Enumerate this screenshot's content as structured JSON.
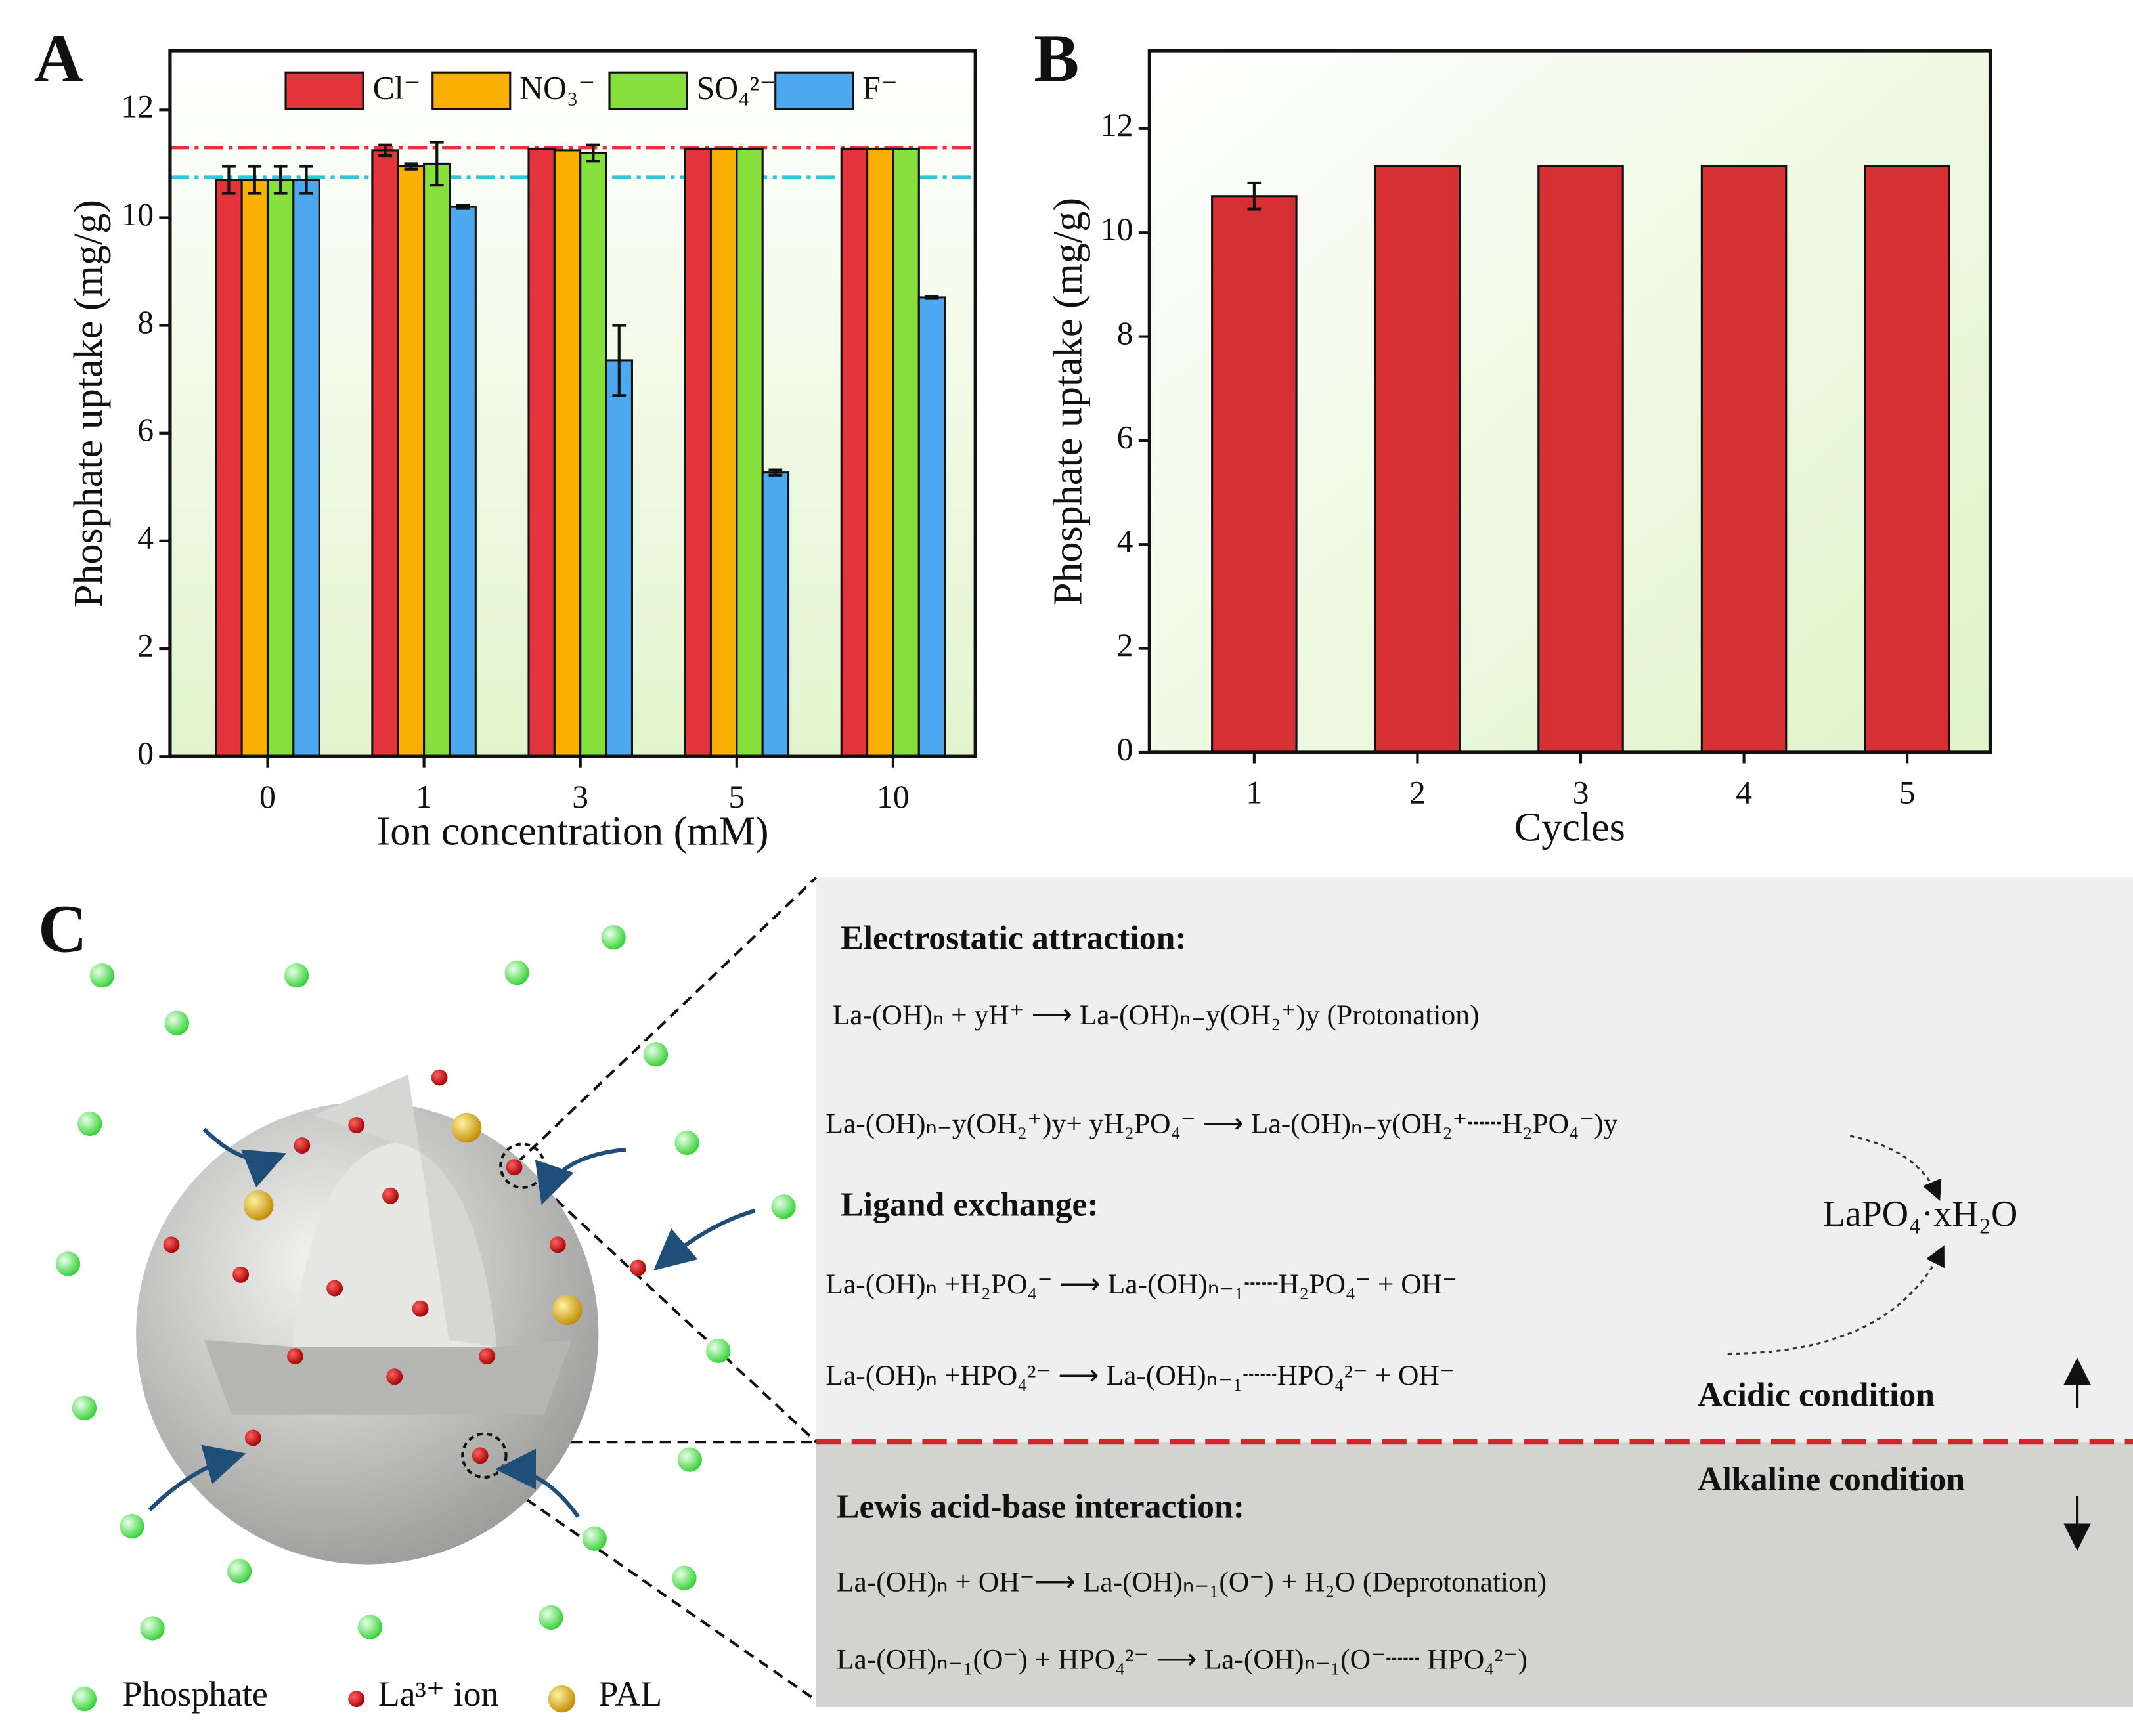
{
  "chart_data": [
    {
      "type": "bar",
      "panel_label": "A",
      "x_label": "Ion concentration (mM)",
      "y_label": "Phosphate uptake (mg/g)",
      "categories": [
        "0",
        "1",
        "3",
        "5",
        "10"
      ],
      "series": [
        {
          "name": "Cl⁻",
          "color": "#e3333b",
          "values": [
            10.7,
            11.25,
            11.28,
            11.28,
            11.28
          ],
          "errors": [
            0.25,
            0.1,
            null,
            null,
            null
          ]
        },
        {
          "name": "NO₃⁻",
          "color": "#f9b000",
          "values": [
            10.7,
            10.95,
            11.25,
            11.28,
            11.28
          ],
          "errors": [
            0.25,
            0.05,
            null,
            null,
            null
          ]
        },
        {
          "name": "SO₄²⁻",
          "color": "#86df3a",
          "values": [
            10.7,
            11.0,
            11.2,
            11.28,
            11.28
          ],
          "errors": [
            0.25,
            0.4,
            0.15,
            null,
            null
          ]
        },
        {
          "name": "F⁻",
          "color": "#4da8f0",
          "values": [
            10.7,
            10.2,
            7.35,
            5.27,
            8.52
          ],
          "errors": [
            0.25,
            0.03,
            0.65,
            0.05,
            0.02
          ]
        }
      ],
      "reference_lines": [
        {
          "value": 11.3,
          "color": "#e8323a"
        },
        {
          "value": 10.75,
          "color": "#2ec8d8"
        }
      ],
      "ylim": [
        0,
        13.1
      ],
      "yticks": [
        0,
        2,
        4,
        6,
        8,
        10,
        12
      ]
    },
    {
      "type": "bar",
      "panel_label": "B",
      "x_label": "Cycles",
      "y_label": "Phosphate uptake (mg/g)",
      "categories": [
        "1",
        "2",
        "3",
        "4",
        "5"
      ],
      "values": [
        10.7,
        11.28,
        11.28,
        11.28,
        11.28
      ],
      "errors": [
        0.25,
        null,
        null,
        null,
        null
      ],
      "color": "#d63034",
      "ylim": [
        0,
        13.5
      ],
      "yticks": [
        0,
        2,
        4,
        6,
        8,
        10,
        12
      ]
    }
  ],
  "diagram": {
    "panel_label": "C",
    "sections": [
      {
        "heading": "Electrostatic attraction:",
        "equations": [
          "La-(OH)ₙ + yH⁺ ⟶ La-(OH)ₙ₋y(OH₂⁺)y  (Protonation)",
          "La-(OH)ₙ₋y(OH₂⁺)y+ yH₂PO₄⁻ ⟶ La-(OH)ₙ₋y(OH₂⁺┄┄H₂PO₄⁻)y"
        ]
      },
      {
        "heading": "Ligand exchange:",
        "equations": [
          "La-(OH)ₙ +H₂PO₄⁻ ⟶ La-(OH)ₙ₋₁┄┄H₂PO₄⁻ + OH⁻",
          "La-(OH)ₙ +HPO₄²⁻ ⟶ La-(OH)ₙ₋₁┄┄HPO₄²⁻ + OH⁻"
        ]
      },
      {
        "heading": "Lewis acid-base interaction:",
        "equations": [
          "La-(OH)ₙ + OH⁻⟶ La-(OH)ₙ₋₁(O⁻) + H₂O   (Deprotonation)",
          "La-(OH)ₙ₋₁(O⁻) + HPO₄²⁻ ⟶ La-(OH)ₙ₋₁(O⁻┄┄ HPO₄²⁻)"
        ]
      }
    ],
    "product": "LaPO₄·xH₂O",
    "conditions": [
      "Acidic condition",
      "Alkaline condition"
    ],
    "legend": [
      "Phosphate",
      "La³⁺ ion",
      "PAL"
    ]
  }
}
